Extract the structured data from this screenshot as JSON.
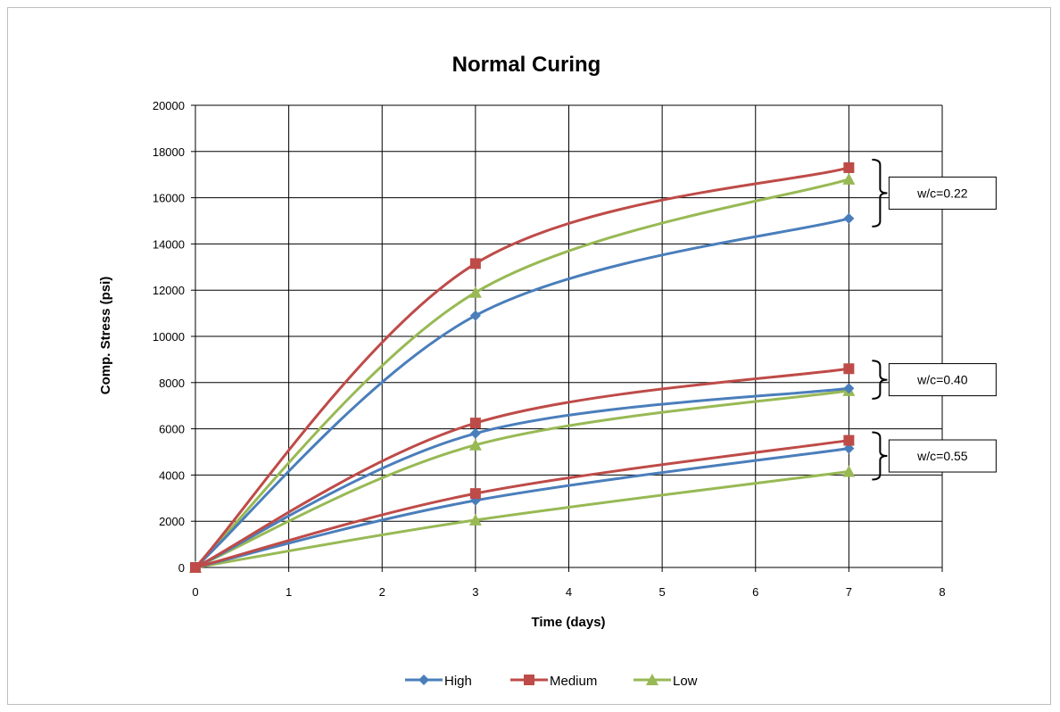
{
  "chart_data": {
    "type": "line",
    "title": "Normal Curing",
    "xlabel": "Time (days)",
    "ylabel": "Comp. Stress (psi)",
    "xlim": [
      0,
      8
    ],
    "ylim": [
      0,
      20000
    ],
    "x_ticks": [
      0,
      1,
      2,
      3,
      4,
      5,
      6,
      7,
      8
    ],
    "y_ticks": [
      0,
      2000,
      4000,
      6000,
      8000,
      10000,
      12000,
      14000,
      16000,
      18000,
      20000
    ],
    "grid": true,
    "legend_position": "bottom",
    "legend": [
      {
        "name": "High",
        "color": "#4a7ebb",
        "marker": "diamond"
      },
      {
        "name": "Medium",
        "color": "#be4b48",
        "marker": "square"
      },
      {
        "name": "Low",
        "color": "#98b954",
        "marker": "triangle"
      }
    ],
    "groups": [
      {
        "annotation": "w/c=0.22",
        "series": [
          {
            "name": "High",
            "x": [
              0,
              3,
              7
            ],
            "values": [
              0,
              10900,
              15100
            ]
          },
          {
            "name": "Medium",
            "x": [
              0,
              3,
              7
            ],
            "values": [
              0,
              13150,
              17300
            ]
          },
          {
            "name": "Low",
            "x": [
              0,
              3,
              7
            ],
            "values": [
              0,
              11900,
              16800
            ]
          }
        ]
      },
      {
        "annotation": "w/c=0.40",
        "series": [
          {
            "name": "High",
            "x": [
              0,
              3,
              7
            ],
            "values": [
              0,
              5800,
              7750
            ]
          },
          {
            "name": "Medium",
            "x": [
              0,
              3,
              7
            ],
            "values": [
              0,
              6250,
              8600
            ]
          },
          {
            "name": "Low",
            "x": [
              0,
              3,
              7
            ],
            "values": [
              0,
              5300,
              7650
            ]
          }
        ]
      },
      {
        "annotation": "w/c=0.55",
        "series": [
          {
            "name": "High",
            "x": [
              0,
              3,
              7
            ],
            "values": [
              0,
              2900,
              5150
            ]
          },
          {
            "name": "Medium",
            "x": [
              0,
              3,
              7
            ],
            "values": [
              0,
              3200,
              5500
            ]
          },
          {
            "name": "Low",
            "x": [
              0,
              3,
              7
            ],
            "values": [
              0,
              2050,
              4150
            ]
          }
        ]
      }
    ]
  }
}
